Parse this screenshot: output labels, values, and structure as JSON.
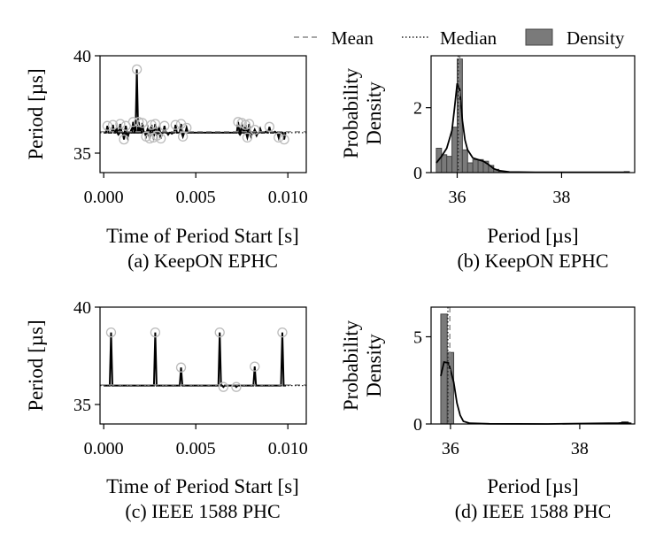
{
  "legend": {
    "mean": "Mean",
    "median": "Median",
    "density": "Density",
    "placement": "top-right"
  },
  "colors": {
    "line": "#000000",
    "bar_fill": "#7a7a7a",
    "bar_edge": "#444444",
    "mean_line": "#888888",
    "median_line": "#222222",
    "outlier_ring": "#bbbbbb"
  },
  "chart_data": [
    {
      "id": "a",
      "type": "line",
      "caption": "(a) KeepON EPHC",
      "xlabel": "Time of Period Start [s]",
      "ylabel": "Period [µs]",
      "xlim": [
        -0.0002,
        0.011
      ],
      "ylim": [
        34.0,
        40.0
      ],
      "xticks": [
        0.0,
        0.005,
        0.01
      ],
      "xtick_labels": [
        "0.000",
        "0.005",
        "0.010"
      ],
      "yticks": [
        35,
        40
      ],
      "ytick_labels": [
        "35",
        "40"
      ],
      "baseline_start": 0.0,
      "baseline_end": 0.0099,
      "baseline_value": 36.05,
      "mean": 36.1,
      "median": 36.05,
      "spikes": [
        [
          0.0002,
          36.4
        ],
        [
          0.0005,
          36.45
        ],
        [
          0.0007,
          36.3
        ],
        [
          0.0008,
          35.95
        ],
        [
          0.0009,
          36.5
        ],
        [
          0.0011,
          35.7
        ],
        [
          0.0012,
          36.4
        ],
        [
          0.0013,
          35.8
        ],
        [
          0.0015,
          36.2
        ],
        [
          0.0016,
          36.6
        ],
        [
          0.0018,
          39.3
        ],
        [
          0.0019,
          36.6
        ],
        [
          0.002,
          36.25
        ],
        [
          0.0021,
          36.55
        ],
        [
          0.0022,
          36.1
        ],
        [
          0.0023,
          35.85
        ],
        [
          0.0024,
          36.3
        ],
        [
          0.0025,
          35.75
        ],
        [
          0.0026,
          36.45
        ],
        [
          0.0027,
          35.8
        ],
        [
          0.0028,
          36.5
        ],
        [
          0.0029,
          35.9
        ],
        [
          0.003,
          36.35
        ],
        [
          0.0031,
          35.75
        ],
        [
          0.0033,
          36.4
        ],
        [
          0.0035,
          35.95
        ],
        [
          0.0037,
          36.0
        ],
        [
          0.0039,
          36.45
        ],
        [
          0.0042,
          36.5
        ],
        [
          0.0043,
          35.85
        ],
        [
          0.0045,
          36.3
        ],
        [
          0.0073,
          36.6
        ],
        [
          0.0074,
          35.95
        ],
        [
          0.0075,
          36.55
        ],
        [
          0.0076,
          36.2
        ],
        [
          0.0077,
          36.45
        ],
        [
          0.0078,
          35.8
        ],
        [
          0.0079,
          36.5
        ],
        [
          0.008,
          35.85
        ],
        [
          0.0082,
          36.2
        ],
        [
          0.0083,
          35.9
        ],
        [
          0.0085,
          36.25
        ],
        [
          0.0088,
          36.1
        ],
        [
          0.009,
          36.35
        ],
        [
          0.0093,
          36.1
        ],
        [
          0.0095,
          35.8
        ],
        [
          0.0098,
          35.7
        ]
      ],
      "outliers": [
        [
          0.0002,
          36.4
        ],
        [
          0.0005,
          36.45
        ],
        [
          0.0009,
          36.5
        ],
        [
          0.0011,
          35.7
        ],
        [
          0.0012,
          36.4
        ],
        [
          0.0016,
          36.6
        ],
        [
          0.0018,
          39.3
        ],
        [
          0.0019,
          36.6
        ],
        [
          0.0021,
          36.55
        ],
        [
          0.0023,
          35.85
        ],
        [
          0.0025,
          35.75
        ],
        [
          0.0026,
          36.45
        ],
        [
          0.0027,
          35.8
        ],
        [
          0.0028,
          36.5
        ],
        [
          0.0029,
          35.9
        ],
        [
          0.0031,
          35.75
        ],
        [
          0.0033,
          36.4
        ],
        [
          0.0039,
          36.45
        ],
        [
          0.0042,
          36.5
        ],
        [
          0.0043,
          35.85
        ],
        [
          0.0045,
          36.3
        ],
        [
          0.0073,
          36.6
        ],
        [
          0.0075,
          36.55
        ],
        [
          0.0077,
          36.45
        ],
        [
          0.0078,
          35.8
        ],
        [
          0.0079,
          36.5
        ],
        [
          0.0082,
          36.2
        ],
        [
          0.009,
          36.35
        ],
        [
          0.0095,
          35.8
        ],
        [
          0.0098,
          35.7
        ]
      ]
    },
    {
      "id": "b",
      "type": "bar",
      "caption": "(b) KeepON EPHC",
      "xlabel": "Period [µs]",
      "ylabel_line1": "Probability",
      "ylabel_line2": "Density",
      "xlim": [
        35.5,
        39.4
      ],
      "ylim": [
        0,
        3.6
      ],
      "xticks": [
        36,
        38
      ],
      "xtick_labels": [
        "36",
        "38"
      ],
      "yticks": [
        0,
        2
      ],
      "ytick_labels": [
        "0",
        "2"
      ],
      "bin_width": 0.1,
      "bins": [
        [
          35.6,
          0.75
        ],
        [
          35.7,
          0.55
        ],
        [
          35.8,
          0.5
        ],
        [
          35.9,
          1.4
        ],
        [
          36.0,
          3.5
        ],
        [
          36.1,
          0.7
        ],
        [
          36.2,
          0.3
        ],
        [
          36.3,
          0.4
        ],
        [
          36.4,
          0.4
        ],
        [
          36.5,
          0.35
        ],
        [
          36.6,
          0.22
        ],
        [
          36.7,
          0.1
        ],
        [
          36.8,
          0.04
        ],
        [
          39.2,
          0.03
        ]
      ],
      "kde": [
        [
          35.6,
          0.3
        ],
        [
          35.7,
          0.5
        ],
        [
          35.8,
          0.75
        ],
        [
          35.9,
          1.3
        ],
        [
          35.95,
          2.0
        ],
        [
          36.0,
          2.75
        ],
        [
          36.05,
          2.55
        ],
        [
          36.1,
          1.6
        ],
        [
          36.15,
          1.0
        ],
        [
          36.2,
          0.7
        ],
        [
          36.3,
          0.45
        ],
        [
          36.4,
          0.4
        ],
        [
          36.5,
          0.35
        ],
        [
          36.6,
          0.25
        ],
        [
          36.7,
          0.12
        ],
        [
          36.8,
          0.06
        ],
        [
          37.0,
          0.02
        ],
        [
          37.5,
          0.01
        ],
        [
          38.5,
          0.01
        ],
        [
          39.3,
          0.01
        ]
      ],
      "mean": 36.05,
      "median": 36.02
    },
    {
      "id": "c",
      "type": "line",
      "caption": "(c) IEEE 1588 PHC",
      "xlabel": "Time of Period Start [s]",
      "ylabel": "Period [µs]",
      "xlim": [
        -0.0002,
        0.011
      ],
      "ylim": [
        34.0,
        40.0
      ],
      "xticks": [
        0.0,
        0.005,
        0.01
      ],
      "xtick_labels": [
        "0.000",
        "0.005",
        "0.010"
      ],
      "yticks": [
        35,
        40
      ],
      "ytick_labels": [
        "35",
        "40"
      ],
      "baseline_start": 0.0,
      "baseline_end": 0.0099,
      "baseline_value": 35.97,
      "mean": 36.0,
      "median": 35.97,
      "spikes": [
        [
          0.0004,
          38.7
        ],
        [
          0.0028,
          38.7
        ],
        [
          0.0042,
          36.9
        ],
        [
          0.0063,
          38.7
        ],
        [
          0.0065,
          35.9
        ],
        [
          0.0072,
          35.9
        ],
        [
          0.0082,
          36.95
        ],
        [
          0.0097,
          38.7
        ]
      ],
      "outliers": [
        [
          0.0004,
          38.7
        ],
        [
          0.0028,
          38.7
        ],
        [
          0.0042,
          36.9
        ],
        [
          0.0063,
          38.7
        ],
        [
          0.0065,
          35.9
        ],
        [
          0.0072,
          35.9
        ],
        [
          0.0082,
          36.95
        ],
        [
          0.0097,
          38.7
        ]
      ]
    },
    {
      "id": "d",
      "type": "bar",
      "caption": "(d) IEEE 1588 PHC",
      "xlabel": "Period [µs]",
      "ylabel_line1": "Probability",
      "ylabel_line2": "Density",
      "xlim": [
        35.7,
        38.85
      ],
      "ylim": [
        0,
        6.7
      ],
      "xticks": [
        36,
        38
      ],
      "xtick_labels": [
        "36",
        "38"
      ],
      "yticks": [
        0,
        5
      ],
      "ytick_labels": [
        "0",
        "5"
      ],
      "bin_width": 0.1,
      "bins": [
        [
          35.85,
          6.3
        ],
        [
          35.95,
          4.1
        ],
        [
          38.65,
          0.12
        ]
      ],
      "kde": [
        [
          35.85,
          2.75
        ],
        [
          35.9,
          3.55
        ],
        [
          35.97,
          3.5
        ],
        [
          36.0,
          3.1
        ],
        [
          36.05,
          2.4
        ],
        [
          36.1,
          1.2
        ],
        [
          36.15,
          0.5
        ],
        [
          36.2,
          0.15
        ],
        [
          36.3,
          0.04
        ],
        [
          36.6,
          0.01
        ],
        [
          37.5,
          0.0
        ],
        [
          38.6,
          0.05
        ],
        [
          38.7,
          0.07
        ],
        [
          38.8,
          0.03
        ]
      ],
      "mean": 35.99,
      "median": 35.96
    }
  ]
}
